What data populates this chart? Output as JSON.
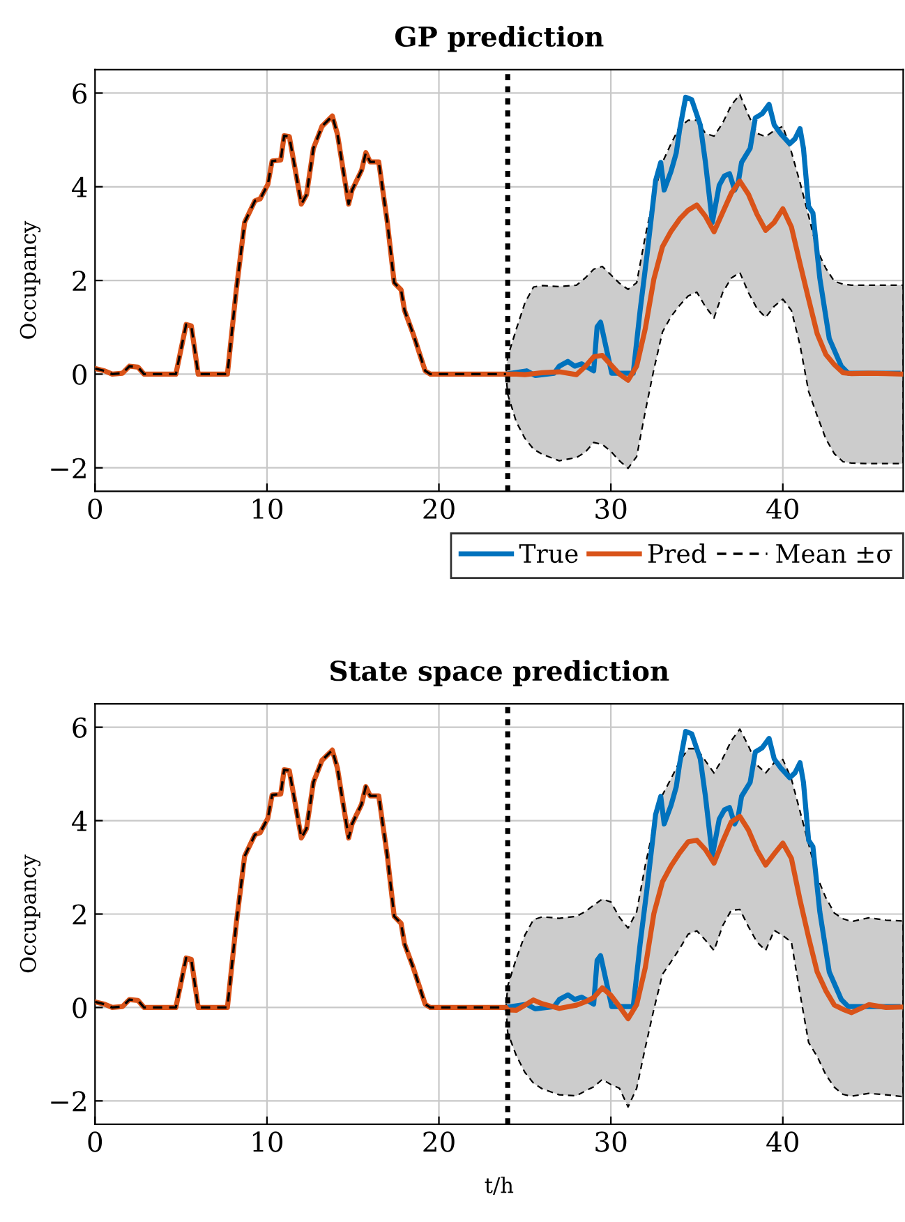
{
  "chart_data": [
    {
      "type": "line",
      "title": "GP prediction",
      "ylabel": "Occupancy",
      "xlim": [
        0,
        47
      ],
      "ylim": [
        -2.5,
        6.5
      ],
      "xticks": [
        0,
        10,
        20,
        30,
        40
      ],
      "yticks": [
        {
          "value": -2,
          "label": "−2"
        },
        0,
        2,
        4,
        6
      ],
      "grid": true,
      "legend": "bottom",
      "ref_lines": [
        {
          "axis": "x",
          "value": 24,
          "color": "#000000",
          "line_style": "dotted"
        }
      ],
      "series": [
        {
          "name": "True",
          "color": "#0072bd",
          "x": [
            23.9,
            25.1,
            25.6,
            26.7,
            27.0,
            27.5,
            27.9,
            28.3,
            29.0,
            29.2,
            29.4,
            30.05,
            31.3,
            31.7,
            32.1,
            32.6,
            32.9,
            33.1,
            33.5,
            33.8,
            34.0,
            34.35,
            34.7,
            35.2,
            35.5,
            35.9,
            36.3,
            36.6,
            36.9,
            37.2,
            37.4,
            37.6,
            38.1,
            38.4,
            38.8,
            39.2,
            39.5,
            39.9,
            40.4,
            40.7,
            41.0,
            41.2,
            41.5,
            41.75,
            42.15,
            42.7,
            43.4,
            43.8,
            46.7
          ],
          "values": [
            0,
            0.07,
            -0.03,
            0.02,
            0.17,
            0.27,
            0.17,
            0.22,
            0.07,
            1.01,
            1.11,
            0.02,
            0.02,
            1.36,
            2.54,
            4.13,
            4.52,
            3.93,
            4.33,
            4.72,
            5.22,
            5.91,
            5.86,
            5.32,
            4.52,
            3.24,
            4.03,
            4.23,
            4.28,
            3.93,
            4.08,
            4.52,
            4.82,
            5.47,
            5.56,
            5.76,
            5.32,
            5.12,
            4.92,
            5.02,
            5.24,
            4.82,
            3.58,
            3.44,
            2.05,
            0.76,
            0.17,
            0.02,
            0.02
          ]
        },
        {
          "name": "Pred",
          "color": "#d95319",
          "x": [
            0,
            0.56,
            1,
            1.6,
            2.0,
            2.5,
            2.85,
            4.7,
            5.3,
            5.6,
            6.0,
            7.7,
            8.2,
            8.7,
            9.3,
            9.6,
            10.05,
            10.3,
            10.8,
            11.0,
            11.3,
            12.0,
            12.3,
            12.7,
            13.2,
            13.8,
            14.1,
            14.75,
            14.95,
            15.5,
            15.75,
            16.0,
            16.5,
            17.0,
            17.4,
            17.8,
            18.0,
            18.5,
            19.2,
            19.5,
            23.9,
            24,
            24.5,
            25,
            25.5,
            26,
            27,
            28,
            28.5,
            29,
            29.5,
            30,
            30.5,
            31,
            31.5,
            32,
            32.5,
            33,
            33.5,
            34,
            34.5,
            35,
            35.5,
            36,
            36.5,
            37,
            37.5,
            38,
            38.5,
            39,
            39.5,
            40,
            40.5,
            41,
            41.5,
            42,
            42.5,
            43,
            43.5,
            44,
            45,
            46,
            47
          ],
          "values": [
            0.12,
            0.07,
            0,
            0.02,
            0.17,
            0.15,
            0,
            0,
            1.06,
            1.03,
            0,
            0,
            1.75,
            3.24,
            3.7,
            3.74,
            4.05,
            4.55,
            4.57,
            5.09,
            5.07,
            3.63,
            3.83,
            4.82,
            5.29,
            5.51,
            5.12,
            3.63,
            3.93,
            4.35,
            4.73,
            4.53,
            4.53,
            3.24,
            1.95,
            1.8,
            1.36,
            0.86,
            0.07,
            0,
            0,
            0,
            0,
            -0.01,
            0.01,
            0.03,
            0.05,
            -0.01,
            0.16,
            0.37,
            0.4,
            0.2,
            0.0,
            -0.13,
            0.17,
            0.97,
            2.03,
            2.72,
            3.05,
            3.31,
            3.5,
            3.61,
            3.37,
            3.04,
            3.45,
            3.86,
            4.12,
            3.84,
            3.41,
            3.07,
            3.24,
            3.53,
            3.14,
            2.36,
            1.6,
            0.86,
            0.42,
            0.2,
            0.03,
            0.01,
            0.02,
            0.01,
            0
          ],
          "upper": [
            0.12,
            0.07,
            0,
            0.02,
            0.17,
            0.15,
            0,
            0,
            1.06,
            1.03,
            0,
            0,
            1.75,
            3.24,
            3.7,
            3.74,
            4.05,
            4.55,
            4.57,
            5.09,
            5.07,
            3.63,
            3.83,
            4.82,
            5.29,
            5.51,
            5.12,
            3.63,
            3.93,
            4.35,
            4.73,
            4.53,
            4.53,
            3.24,
            1.95,
            1.8,
            1.36,
            0.86,
            0.07,
            0,
            0,
            0.37,
            0.96,
            1.52,
            1.86,
            1.89,
            1.87,
            1.9,
            2.05,
            2.24,
            2.3,
            2.12,
            1.94,
            1.81,
            1.95,
            2.94,
            3.81,
            4.52,
            4.92,
            5.28,
            5.42,
            5.42,
            5.14,
            5.08,
            5.36,
            5.74,
            5.97,
            5.53,
            5.14,
            5.07,
            5.2,
            5.29,
            4.74,
            4.09,
            3.38,
            2.64,
            2.26,
            1.98,
            1.92,
            1.9,
            1.9,
            1.9,
            1.9
          ],
          "lower": [
            0.12,
            0.07,
            0,
            0.02,
            0.17,
            0.15,
            0,
            0,
            1.06,
            1.03,
            0,
            0,
            1.75,
            3.24,
            3.7,
            3.74,
            4.05,
            4.55,
            4.57,
            5.09,
            5.07,
            3.63,
            3.83,
            4.82,
            5.29,
            5.51,
            5.12,
            3.63,
            3.93,
            4.35,
            4.73,
            4.53,
            4.53,
            3.24,
            1.95,
            1.8,
            1.36,
            0.86,
            0.07,
            0,
            0,
            -0.43,
            -1.02,
            -1.37,
            -1.6,
            -1.71,
            -1.85,
            -1.78,
            -1.67,
            -1.46,
            -1.5,
            -1.65,
            -1.85,
            -2.01,
            -1.76,
            -0.8,
            0.1,
            0.9,
            1.23,
            1.47,
            1.67,
            1.75,
            1.44,
            1.2,
            1.74,
            2.05,
            2.17,
            1.74,
            1.4,
            1.21,
            1.45,
            1.6,
            1.36,
            0.62,
            -0.37,
            -0.89,
            -1.38,
            -1.7,
            -1.87,
            -1.9,
            -1.91,
            -1.91,
            -1.91
          ]
        },
        {
          "name": "Mean ±σ",
          "color": "#000000",
          "line_style": "dashed",
          "x": [
            0,
            0.56,
            1,
            1.6,
            2.0,
            2.5,
            2.85,
            4.7,
            5.3,
            5.6,
            6.0,
            7.7,
            8.2,
            8.7,
            9.3,
            9.6,
            10.05,
            10.3,
            10.8,
            11.0,
            11.3,
            12.0,
            12.3,
            12.7,
            13.2,
            13.8,
            14.1,
            14.75,
            14.95,
            15.5,
            15.75,
            16.0,
            16.5,
            17.0,
            17.4,
            17.8,
            18.0,
            18.5,
            19.2,
            19.5,
            23.9
          ],
          "values": [
            0.12,
            0.07,
            0,
            0.02,
            0.17,
            0.15,
            0,
            0,
            1.06,
            1.03,
            0,
            0,
            1.75,
            3.24,
            3.7,
            3.74,
            4.05,
            4.55,
            4.57,
            5.09,
            5.07,
            3.63,
            3.83,
            4.82,
            5.29,
            5.51,
            5.12,
            3.63,
            3.93,
            4.35,
            4.73,
            4.53,
            4.53,
            3.24,
            1.95,
            1.8,
            1.36,
            0.86,
            0.07,
            0,
            0
          ]
        }
      ]
    },
    {
      "type": "line",
      "title": "State space prediction",
      "xlabel": "t/h",
      "ylabel": "Occupancy",
      "xlim": [
        0,
        47
      ],
      "ylim": [
        -2.5,
        6.5
      ],
      "xticks": [
        0,
        10,
        20,
        30,
        40
      ],
      "yticks": [
        {
          "value": -2,
          "label": "−2"
        },
        0,
        2,
        4,
        6
      ],
      "grid": true,
      "ref_lines": [
        {
          "axis": "x",
          "value": 24,
          "color": "#000000",
          "line_style": "dotted"
        }
      ],
      "series": [
        {
          "color": "#0072bd",
          "x": [
            23.9,
            25.1,
            25.6,
            26.7,
            27.0,
            27.5,
            27.9,
            28.3,
            29.0,
            29.2,
            29.4,
            30.05,
            31.3,
            31.7,
            32.1,
            32.6,
            32.9,
            33.1,
            33.5,
            33.8,
            34.0,
            34.35,
            34.7,
            35.2,
            35.5,
            35.9,
            36.3,
            36.6,
            36.9,
            37.2,
            37.4,
            37.6,
            38.1,
            38.4,
            38.8,
            39.2,
            39.5,
            39.9,
            40.4,
            40.7,
            41.0,
            41.2,
            41.5,
            41.75,
            42.15,
            42.7,
            43.4,
            43.8,
            46.7
          ],
          "values": [
            0,
            0.07,
            -0.03,
            0.02,
            0.17,
            0.27,
            0.17,
            0.22,
            0.07,
            1.01,
            1.11,
            0.02,
            0.02,
            1.36,
            2.54,
            4.13,
            4.52,
            3.93,
            4.33,
            4.72,
            5.22,
            5.91,
            5.86,
            5.32,
            4.52,
            3.24,
            4.03,
            4.23,
            4.28,
            3.93,
            4.08,
            4.52,
            4.82,
            5.47,
            5.56,
            5.76,
            5.32,
            5.12,
            4.92,
            5.02,
            5.24,
            4.82,
            3.58,
            3.44,
            2.05,
            0.76,
            0.17,
            0.02,
            0.02
          ]
        },
        {
          "color": "#d95319",
          "x": [
            0,
            0.56,
            1,
            1.6,
            2.0,
            2.5,
            2.85,
            4.7,
            5.3,
            5.6,
            6.0,
            7.7,
            8.2,
            8.7,
            9.3,
            9.6,
            10.05,
            10.3,
            10.8,
            11.0,
            11.3,
            12.0,
            12.3,
            12.7,
            13.2,
            13.8,
            14.1,
            14.75,
            14.95,
            15.5,
            15.75,
            16.0,
            16.5,
            17.0,
            17.4,
            17.8,
            18.0,
            18.5,
            19.2,
            19.5,
            23.9,
            24,
            24.5,
            25,
            25.5,
            26,
            27,
            28,
            28.5,
            29,
            29.5,
            30,
            30.5,
            31,
            31.5,
            32,
            32.5,
            33,
            33.5,
            34,
            34.5,
            35,
            35.5,
            36,
            36.5,
            37,
            37.5,
            38,
            38.5,
            39,
            39.5,
            40,
            40.5,
            41,
            41.5,
            42,
            42.5,
            43,
            43.5,
            44,
            45,
            46,
            47
          ],
          "values": [
            0.12,
            0.07,
            0,
            0.02,
            0.17,
            0.15,
            0,
            0,
            1.06,
            1.03,
            0,
            0,
            1.75,
            3.24,
            3.7,
            3.74,
            4.05,
            4.55,
            4.57,
            5.09,
            5.07,
            3.63,
            3.83,
            4.82,
            5.29,
            5.51,
            5.12,
            3.63,
            3.93,
            4.35,
            4.73,
            4.53,
            4.53,
            3.24,
            1.95,
            1.8,
            1.36,
            0.86,
            0.07,
            0,
            0,
            -0.05,
            -0.06,
            0.05,
            0.16,
            0.08,
            -0.02,
            0.05,
            0.12,
            0.21,
            0.42,
            0.26,
            0.02,
            -0.24,
            0.06,
            0.85,
            2.01,
            2.69,
            3.03,
            3.31,
            3.55,
            3.58,
            3.38,
            3.09,
            3.55,
            3.97,
            4.09,
            3.8,
            3.37,
            3.05,
            3.29,
            3.52,
            3.19,
            2.3,
            1.5,
            0.76,
            0.36,
            0.05,
            -0.04,
            -0.11,
            0.06,
            0.0,
            0.01
          ],
          "upper": [
            0.12,
            0.07,
            0,
            0.02,
            0.17,
            0.15,
            0,
            0,
            1.06,
            1.03,
            0,
            0,
            1.75,
            3.24,
            3.7,
            3.74,
            4.05,
            4.55,
            4.57,
            5.09,
            5.07,
            3.63,
            3.83,
            4.82,
            5.29,
            5.51,
            5.12,
            3.63,
            3.93,
            4.35,
            4.73,
            4.53,
            4.53,
            3.24,
            1.95,
            1.8,
            1.36,
            0.86,
            0.07,
            0,
            0,
            0.46,
            1.05,
            1.55,
            1.88,
            1.94,
            1.91,
            1.95,
            2.05,
            2.19,
            2.32,
            2.26,
            1.93,
            1.7,
            2.05,
            3.04,
            3.9,
            4.55,
            4.9,
            5.27,
            5.54,
            5.54,
            5.28,
            5.02,
            5.33,
            5.71,
            5.96,
            5.6,
            5.19,
            5.02,
            5.24,
            5.31,
            4.89,
            4.2,
            3.5,
            2.79,
            2.35,
            2.02,
            1.9,
            1.84,
            1.92,
            1.87,
            1.85
          ],
          "lower": [
            0.12,
            0.07,
            0,
            0.02,
            0.17,
            0.15,
            0,
            0,
            1.06,
            1.03,
            0,
            0,
            1.75,
            3.24,
            3.7,
            3.74,
            4.05,
            4.55,
            4.57,
            5.09,
            5.07,
            3.63,
            3.83,
            4.82,
            5.29,
            5.51,
            5.12,
            3.63,
            3.93,
            4.35,
            4.73,
            4.53,
            4.53,
            3.24,
            1.95,
            1.8,
            1.36,
            0.86,
            0.07,
            0,
            0,
            -0.54,
            -1.03,
            -1.39,
            -1.62,
            -1.74,
            -1.87,
            -1.89,
            -1.79,
            -1.7,
            -1.54,
            -1.65,
            -1.73,
            -2.13,
            -1.73,
            -0.86,
            -0.04,
            0.71,
            0.98,
            1.26,
            1.57,
            1.64,
            1.44,
            1.22,
            1.75,
            2.08,
            2.1,
            1.73,
            1.4,
            1.22,
            1.65,
            1.54,
            1.4,
            0.3,
            -0.75,
            -1.05,
            -1.44,
            -1.71,
            -1.86,
            -1.9,
            -1.84,
            -1.87,
            -1.91
          ]
        },
        {
          "color": "#000000",
          "line_style": "dashed",
          "x": [
            0,
            0.56,
            1,
            1.6,
            2.0,
            2.5,
            2.85,
            4.7,
            5.3,
            5.6,
            6.0,
            7.7,
            8.2,
            8.7,
            9.3,
            9.6,
            10.05,
            10.3,
            10.8,
            11.0,
            11.3,
            12.0,
            12.3,
            12.7,
            13.2,
            13.8,
            14.1,
            14.75,
            14.95,
            15.5,
            15.75,
            16.0,
            16.5,
            17.0,
            17.4,
            17.8,
            18.0,
            18.5,
            19.2,
            19.5,
            23.9
          ],
          "values": [
            0.12,
            0.07,
            0,
            0.02,
            0.17,
            0.15,
            0,
            0,
            1.06,
            1.03,
            0,
            0,
            1.75,
            3.24,
            3.7,
            3.74,
            4.05,
            4.55,
            4.57,
            5.09,
            5.07,
            3.63,
            3.83,
            4.82,
            5.29,
            5.51,
            5.12,
            3.63,
            3.93,
            4.35,
            4.73,
            4.53,
            4.53,
            3.24,
            1.95,
            1.8,
            1.36,
            0.86,
            0.07,
            0,
            0
          ]
        }
      ]
    }
  ]
}
